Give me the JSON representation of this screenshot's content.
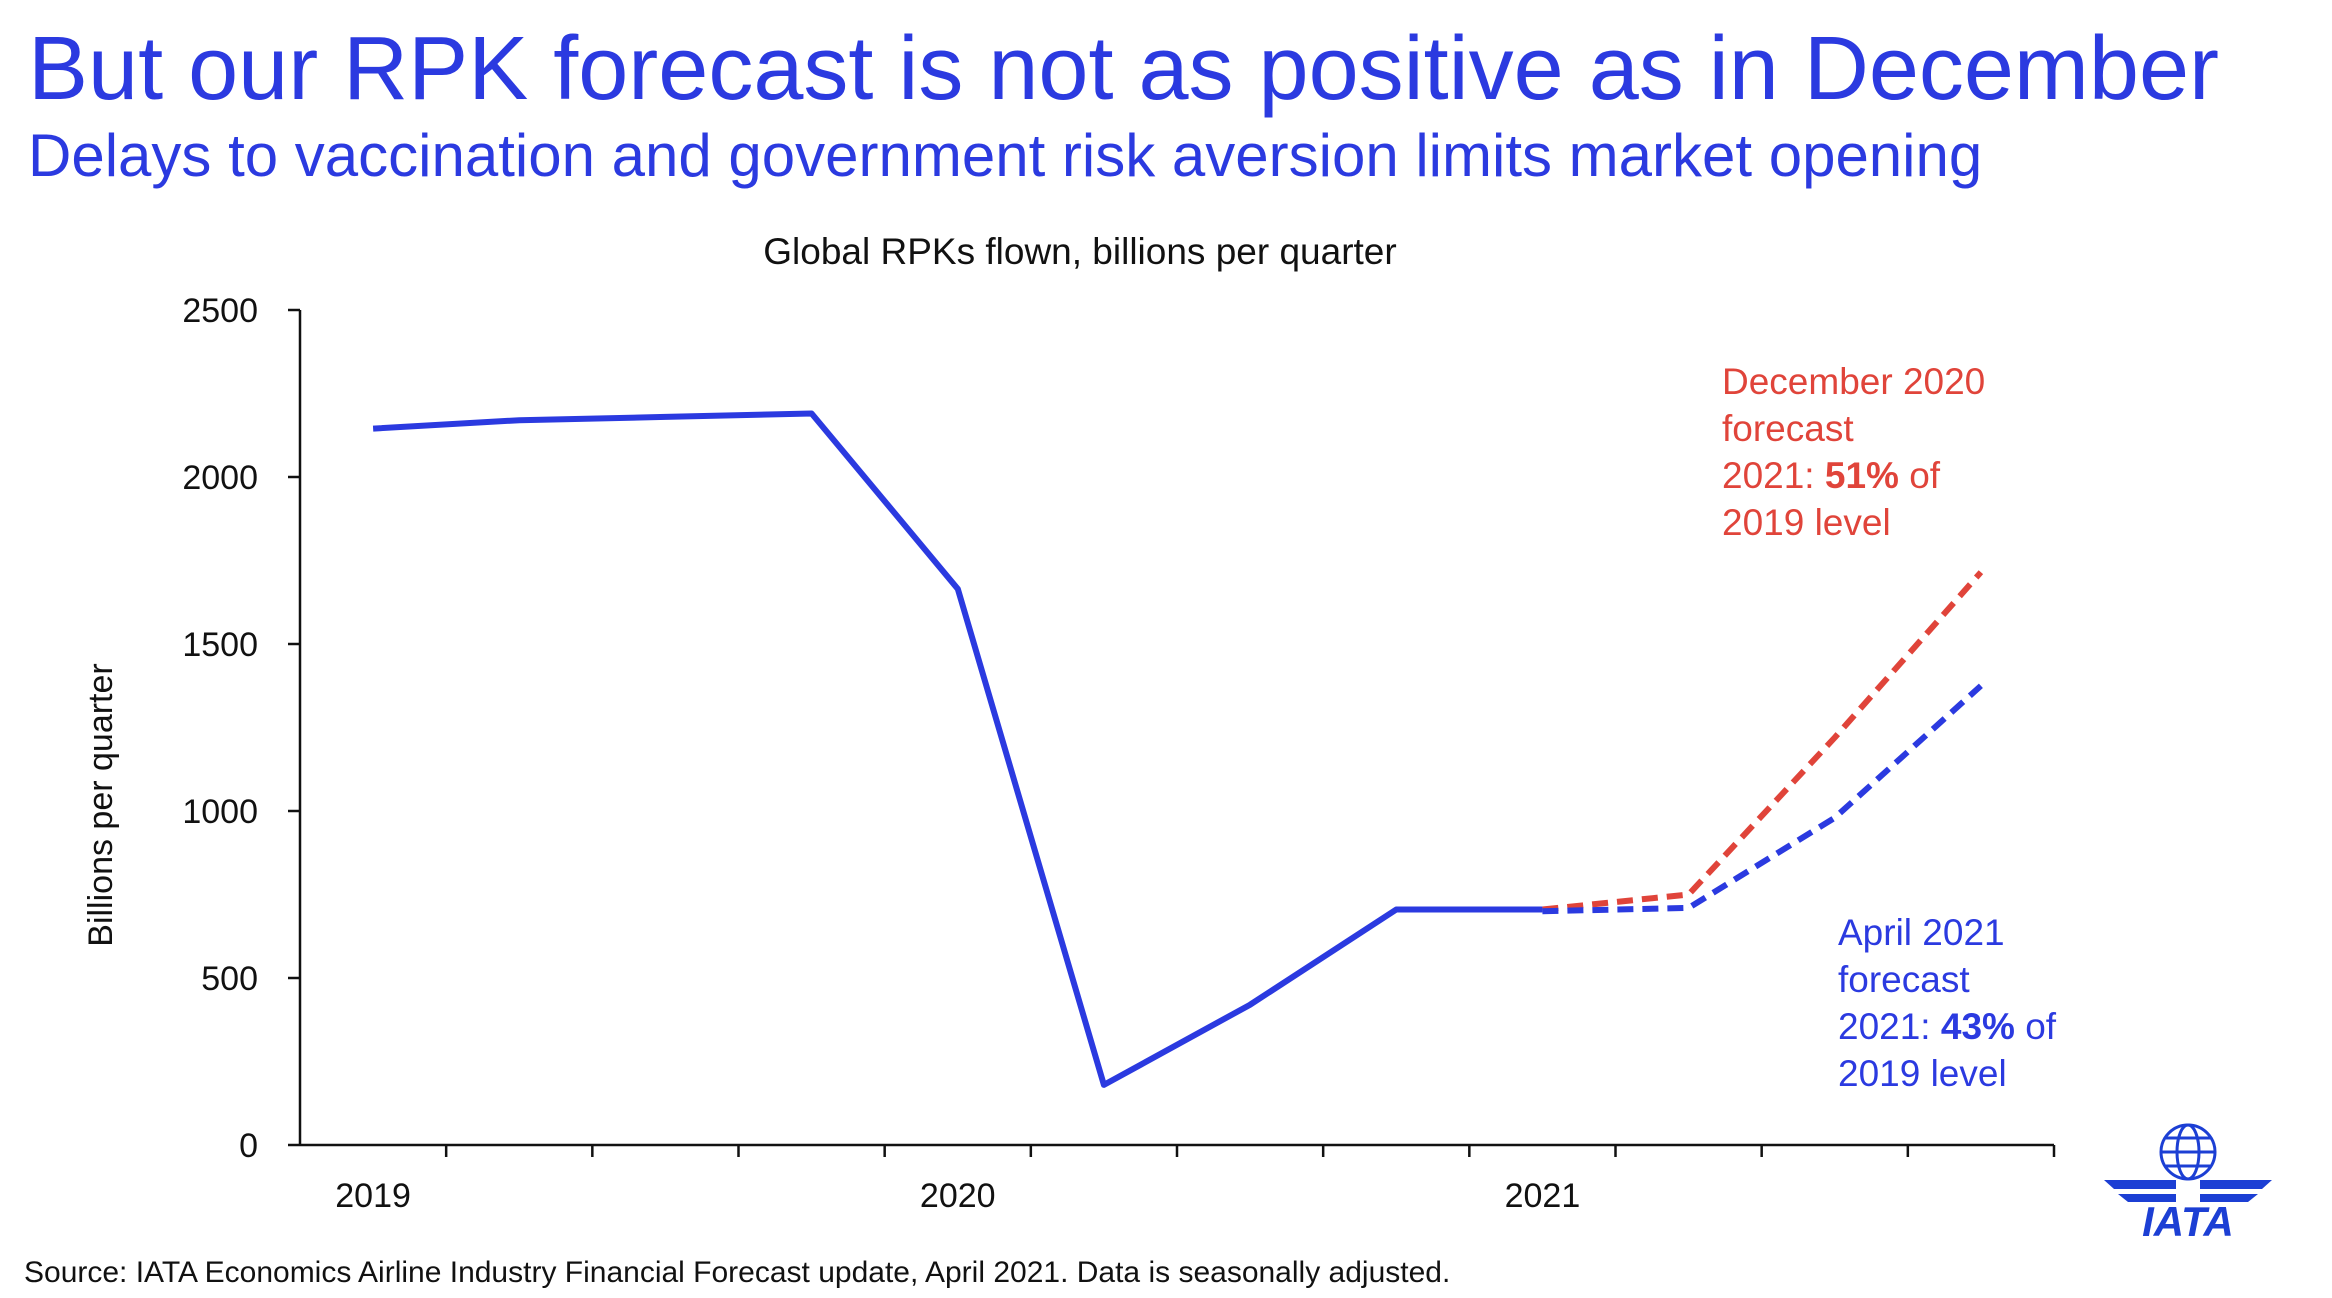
{
  "title": "But our RPK forecast is not as positive as in December",
  "subtitle": "Delays to vaccination and government risk aversion limits market opening",
  "source": "Source: IATA Economics Airline Industry Financial Forecast update, April 2021. Data is seasonally adjusted.",
  "logo_text": "IATA",
  "colors": {
    "accent": "#2b3ae0",
    "december_forecast": "#e0443a",
    "text": "#111111"
  },
  "chart_data": {
    "type": "line",
    "title": "Global RPKs flown, billions per quarter",
    "xlabel": "",
    "ylabel": "Billions per quarter",
    "ylim": [
      0,
      2500
    ],
    "yticks": [
      0,
      500,
      1000,
      1500,
      2000,
      2500
    ],
    "x": [
      "2019Q1",
      "2019Q2",
      "2019Q3",
      "2019Q4",
      "2020Q1",
      "2020Q2",
      "2020Q3",
      "2020Q4",
      "2021Q1",
      "2021Q2",
      "2021Q3",
      "2021Q4"
    ],
    "x_tick_labels": [
      "2019",
      "2020",
      "2021"
    ],
    "x_tick_label_positions": [
      "2019Q1",
      "2020Q1",
      "2021Q1"
    ],
    "grid": false,
    "series": [
      {
        "name": "",
        "style": "solid",
        "color": "#2b3ae0",
        "values": [
          2145,
          2170,
          2180,
          2190,
          1665,
          180,
          420,
          705,
          705,
          null,
          null,
          null
        ]
      },
      {
        "name": "December 2020 forecast",
        "style": "dashed",
        "color": "#e0443a",
        "values": [
          null,
          null,
          null,
          null,
          null,
          null,
          null,
          null,
          705,
          750,
          1220,
          1715
        ]
      },
      {
        "name": "April 2021 forecast",
        "style": "dashed",
        "color": "#2b3ae0",
        "values": [
          null,
          null,
          null,
          null,
          null,
          null,
          null,
          null,
          700,
          710,
          980,
          1375
        ]
      }
    ],
    "annotations": [
      {
        "series": "December 2020 forecast",
        "color": "#e0443a",
        "lines": [
          "December 2020",
          "forecast",
          "2021: ",
          "2019 level"
        ],
        "bold": "51%",
        "bold_suffix": " of"
      },
      {
        "series": "April 2021 forecast",
        "color": "#2b3ae0",
        "lines": [
          "April 2021",
          "forecast",
          "2021: ",
          "2019 level"
        ],
        "bold": "43%",
        "bold_suffix": " of"
      }
    ]
  }
}
